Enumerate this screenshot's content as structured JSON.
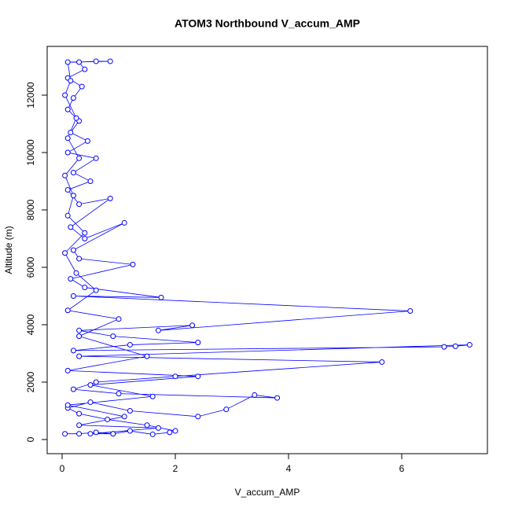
{
  "chart_data": {
    "type": "line",
    "title": "ATOM3 Northbound V_accum_AMP",
    "x_label": "V_accum_AMP",
    "y_label": "Altitude (m)",
    "series": [
      {
        "color": "#0000ff",
        "x": [
          0.05,
          0.3,
          0.6,
          0.9,
          1.2,
          1.6,
          1.9,
          2.0,
          1.5,
          0.8,
          0.3,
          0.1,
          0.5,
          1.2,
          2.4,
          2.9,
          3.4,
          3.8,
          1.0,
          0.2,
          0.6,
          2.0,
          5.65,
          0.3,
          7.2,
          6.95,
          6.75,
          0.2,
          1.2,
          2.4,
          0.9,
          0.3,
          2.3,
          1.7,
          6.15,
          0.2,
          1.75,
          0.4,
          0.15,
          1.25,
          0.3,
          0.2,
          1.1,
          0.4,
          0.15,
          0.85,
          0.3,
          0.1,
          0.5,
          0.2,
          0.6,
          0.1,
          0.45,
          0.15,
          0.3,
          0.1,
          0.2,
          0.35,
          0.1,
          0.4,
          0.3,
          0.6,
          0.85,
          0.1,
          0.15,
          0.05,
          0.25,
          0.1,
          0.3,
          0.05,
          0.2,
          0.1,
          0.4,
          0.05,
          0.25,
          0.6,
          0.1,
          1.0,
          0.3,
          1.5,
          0.1,
          2.4,
          0.5,
          1.6,
          0.1,
          1.1,
          0.3,
          1.7,
          0.5,
          0.9
        ],
        "values": [
          200,
          200,
          250,
          200,
          300,
          180,
          250,
          300,
          500,
          700,
          900,
          1100,
          1300,
          1000,
          800,
          1050,
          1550,
          1450,
          1600,
          1750,
          2000,
          2200,
          2700,
          2900,
          3300,
          3250,
          3230,
          3100,
          3300,
          3380,
          3600,
          3800,
          3980,
          3800,
          4480,
          5000,
          4950,
          5300,
          5600,
          6100,
          6300,
          6600,
          7550,
          7000,
          7400,
          8400,
          8200,
          8700,
          9000,
          9300,
          9800,
          10000,
          10400,
          10700,
          11100,
          11500,
          11900,
          12300,
          12600,
          12900,
          13150,
          13180,
          13180,
          13150,
          12500,
          12000,
          11200,
          10500,
          9800,
          9200,
          8500,
          7800,
          7200,
          6500,
          5800,
          5200,
          4500,
          4200,
          3600,
          2900,
          2400,
          2200,
          1900,
          1500,
          1200,
          800,
          500,
          400,
          200,
          200
        ]
      }
    ],
    "xlim": [
      -0.264,
      7.514
    ],
    "ylim": [
      -493,
      13699
    ],
    "xticks": [
      0,
      2,
      4,
      6
    ],
    "yticks": [
      0,
      2000,
      4000,
      6000,
      8000,
      10000,
      12000
    ]
  }
}
